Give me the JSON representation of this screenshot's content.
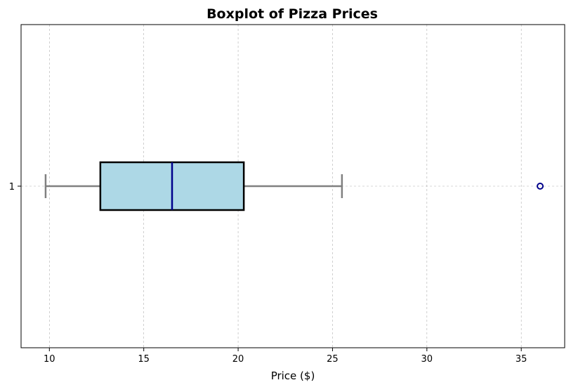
{
  "chart_data": {
    "type": "boxplot",
    "orientation": "horizontal",
    "title": "Boxplot of Pizza Prices",
    "xlabel": "Price ($)",
    "ylabel": "",
    "xlim": [
      8.5,
      37.3
    ],
    "xticks": [
      10,
      15,
      20,
      25,
      30,
      35
    ],
    "grid": true,
    "categories": [
      "1"
    ],
    "boxes": [
      {
        "label": "1",
        "whisker_low": 9.8,
        "q1": 12.7,
        "median": 16.5,
        "q3": 20.3,
        "whisker_high": 25.5,
        "outliers": [
          36.0
        ]
      }
    ],
    "colors": {
      "box_fill": "#add8e6",
      "box_edge": "#000000",
      "median": "#00008b",
      "whisker": "#808080",
      "outlier_edge": "#00008b"
    }
  }
}
